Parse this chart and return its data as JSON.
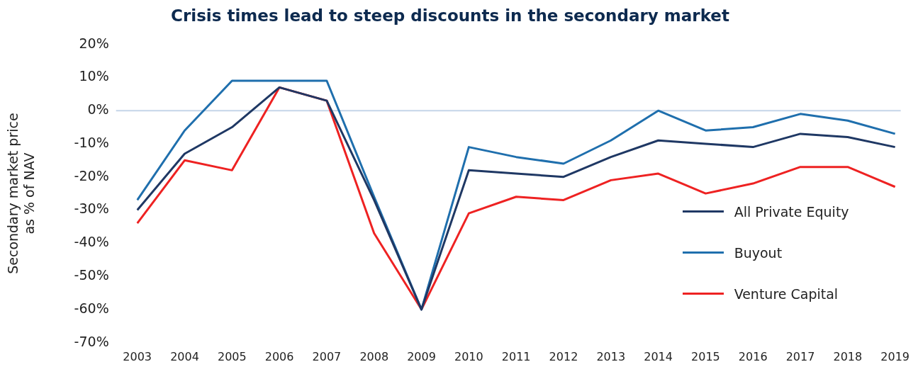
{
  "chart_data": {
    "type": "line",
    "title": "Crisis times lead to steep discounts in the secondary market",
    "ylabel": "Secondary market price as % of NAV",
    "categories": [
      "2003",
      "2004",
      "2005",
      "2006",
      "2007",
      "2008",
      "2009",
      "2010",
      "2011",
      "2012",
      "2013",
      "2014",
      "2015",
      "2016",
      "2017",
      "2018",
      "2019"
    ],
    "series": [
      {
        "name": "All Private Equity",
        "color": "#1f3864",
        "values": [
          -30,
          -13,
          -5,
          7,
          3,
          -27,
          -60,
          -18,
          -19,
          -20,
          -14,
          -9,
          -10,
          -11,
          -7,
          -8,
          -11
        ]
      },
      {
        "name": "Buyout",
        "color": "#1f6fad",
        "values": [
          -27,
          -6,
          9,
          9,
          9,
          -26,
          -60,
          -11,
          -14,
          -16,
          -9,
          0,
          -6,
          -5,
          -1,
          -3,
          -7
        ]
      },
      {
        "name": "Venture Capital",
        "color": "#ee2222",
        "values": [
          -34,
          -15,
          -18,
          7,
          3,
          -37,
          -60,
          -31,
          -26,
          -27,
          -21,
          -19,
          -25,
          -22,
          -17,
          -17,
          -23
        ]
      }
    ],
    "ylim": [
      -70,
      20
    ],
    "yticks": [
      {
        "value": -70,
        "label": "-70%"
      },
      {
        "value": -60,
        "label": "-60%"
      },
      {
        "value": -50,
        "label": "-50%"
      },
      {
        "value": -40,
        "label": "-40%"
      },
      {
        "value": -30,
        "label": "-30%"
      },
      {
        "value": -20,
        "label": "-20%"
      },
      {
        "value": -10,
        "label": "-10%"
      },
      {
        "value": 0,
        "label": "0%"
      },
      {
        "value": 10,
        "label": "10%"
      },
      {
        "value": 20,
        "label": "20%"
      }
    ],
    "ref_lines": [
      {
        "axis": "y",
        "value": 0,
        "color": "#c5d5e8"
      }
    ],
    "grid": false,
    "legend": "right",
    "marker": "none",
    "line_style": "solid"
  }
}
